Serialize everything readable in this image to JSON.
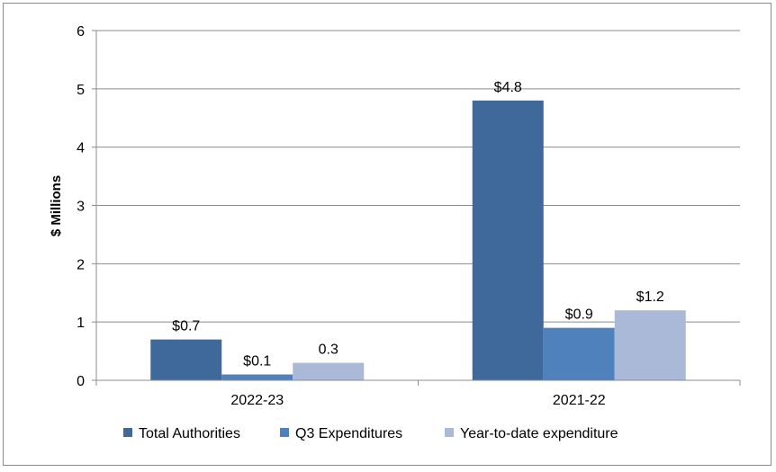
{
  "chart_data": {
    "type": "bar",
    "title": "",
    "xlabel": "",
    "ylabel": "$ Millions",
    "ylim": [
      0,
      6
    ],
    "yticks": [
      "0",
      "1",
      "2",
      "3",
      "4",
      "5",
      "6"
    ],
    "grid": true,
    "legend_position": "bottom",
    "categories": [
      "2022-23",
      "2021-22"
    ],
    "series": [
      {
        "name": "Total Authorities",
        "values": [
          0.7,
          4.8
        ],
        "labels": [
          "$0.7",
          "$4.8"
        ],
        "color": "#3f689b"
      },
      {
        "name": "Q3 Expenditures",
        "values": [
          0.1,
          0.9
        ],
        "labels": [
          "$0.1",
          "$0.9"
        ],
        "color": "#4f81bd"
      },
      {
        "name": "Year-to-date expenditure",
        "values": [
          0.3,
          1.2
        ],
        "labels": [
          "0.3",
          "$1.2"
        ],
        "color": "#aab9d7"
      }
    ]
  }
}
